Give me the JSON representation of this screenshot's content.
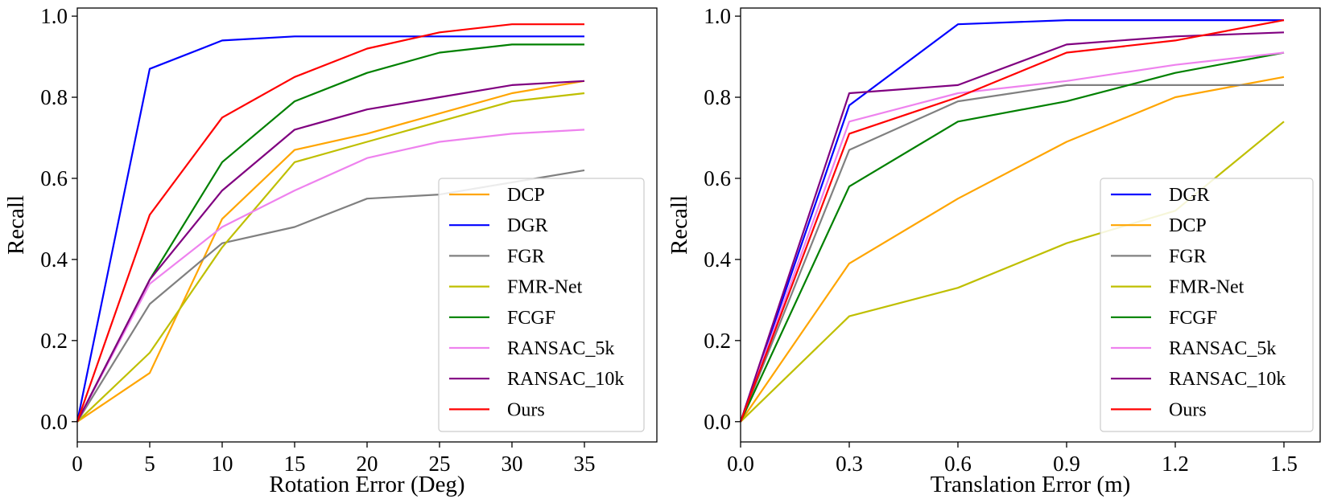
{
  "chart_data": [
    {
      "type": "line",
      "xlabel": "Rotation Error (Deg)",
      "ylabel": "Recall",
      "x": [
        0,
        5,
        10,
        15,
        20,
        25,
        30,
        35
      ],
      "xticks": [
        "0",
        "5",
        "10",
        "15",
        "20",
        "25",
        "30",
        "35"
      ],
      "yticks": [
        "0.0",
        "0.2",
        "0.4",
        "0.6",
        "0.8",
        "1.0"
      ],
      "xlim": [
        0,
        40
      ],
      "ylim": [
        -0.05,
        1.02
      ],
      "grid": false,
      "legend_position": "lower-right",
      "series": [
        {
          "name": "DCP",
          "color": "#FFA500",
          "values": [
            0.0,
            0.12,
            0.5,
            0.67,
            0.71,
            0.76,
            0.81,
            0.84
          ]
        },
        {
          "name": "DGR",
          "color": "#0000FF",
          "values": [
            0.0,
            0.87,
            0.94,
            0.95,
            0.95,
            0.95,
            0.95,
            0.95
          ]
        },
        {
          "name": "FGR",
          "color": "#808080",
          "values": [
            0.0,
            0.29,
            0.44,
            0.48,
            0.55,
            0.56,
            0.59,
            0.62
          ]
        },
        {
          "name": "FMR-Net",
          "color": "#BFBF00",
          "values": [
            0.0,
            0.17,
            0.43,
            0.64,
            0.69,
            0.74,
            0.79,
            0.81
          ]
        },
        {
          "name": "FCGF",
          "color": "#008000",
          "values": [
            0.0,
            0.35,
            0.64,
            0.79,
            0.86,
            0.91,
            0.93,
            0.93
          ]
        },
        {
          "name": "RANSAC_5k",
          "color": "#EE82EE",
          "values": [
            0.0,
            0.34,
            0.48,
            0.57,
            0.65,
            0.69,
            0.71,
            0.72
          ]
        },
        {
          "name": "RANSAC_10k",
          "color": "#800080",
          "values": [
            0.0,
            0.35,
            0.57,
            0.72,
            0.77,
            0.8,
            0.83,
            0.84
          ]
        },
        {
          "name": "Ours",
          "color": "#FF0000",
          "values": [
            0.0,
            0.51,
            0.75,
            0.85,
            0.92,
            0.96,
            0.98,
            0.98
          ]
        }
      ]
    },
    {
      "type": "line",
      "xlabel": "Translation Error (m)",
      "ylabel": "Recall",
      "x": [
        0.0,
        0.3,
        0.6,
        0.9,
        1.2,
        1.5
      ],
      "xticks": [
        "0.0",
        "0.3",
        "0.6",
        "0.9",
        "1.2",
        "1.5"
      ],
      "yticks": [
        "0.0",
        "0.2",
        "0.4",
        "0.6",
        "0.8",
        "1.0"
      ],
      "xlim": [
        0,
        1.6
      ],
      "ylim": [
        -0.05,
        1.02
      ],
      "grid": false,
      "legend_position": "lower-right",
      "series": [
        {
          "name": "DGR",
          "color": "#0000FF",
          "values": [
            0.0,
            0.78,
            0.98,
            0.99,
            0.99,
            0.99
          ]
        },
        {
          "name": "DCP",
          "color": "#FFA500",
          "values": [
            0.0,
            0.39,
            0.55,
            0.69,
            0.8,
            0.85
          ]
        },
        {
          "name": "FGR",
          "color": "#808080",
          "values": [
            0.0,
            0.67,
            0.79,
            0.83,
            0.83,
            0.83
          ]
        },
        {
          "name": "FMR-Net",
          "color": "#BFBF00",
          "values": [
            0.0,
            0.26,
            0.33,
            0.44,
            0.52,
            0.74
          ]
        },
        {
          "name": "FCGF",
          "color": "#008000",
          "values": [
            0.0,
            0.58,
            0.74,
            0.79,
            0.86,
            0.91
          ]
        },
        {
          "name": "RANSAC_5k",
          "color": "#EE82EE",
          "values": [
            0.0,
            0.74,
            0.81,
            0.84,
            0.88,
            0.91
          ]
        },
        {
          "name": "RANSAC_10k",
          "color": "#800080",
          "values": [
            0.0,
            0.81,
            0.83,
            0.93,
            0.95,
            0.96
          ]
        },
        {
          "name": "Ours",
          "color": "#FF0000",
          "values": [
            0.0,
            0.71,
            0.8,
            0.91,
            0.94,
            0.99
          ]
        }
      ]
    }
  ]
}
